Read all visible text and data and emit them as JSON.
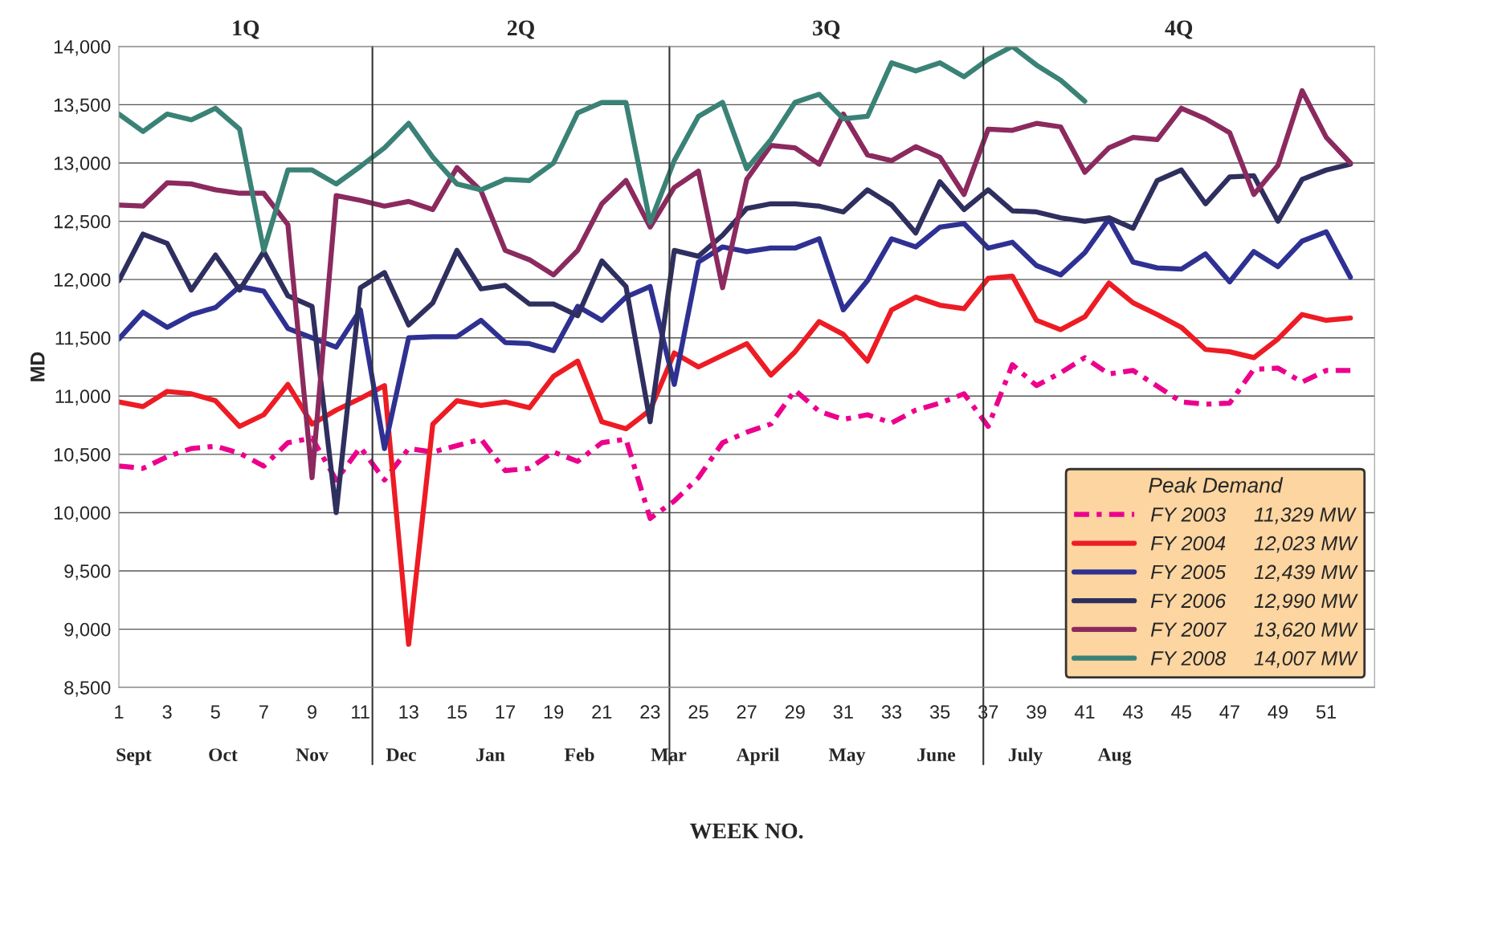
{
  "chart_data": {
    "type": "line",
    "ylabel": "MD",
    "xlabel": "WEEK NO.",
    "legend_title": "Peak Demand",
    "legend": "bottom right",
    "grid": "y",
    "marker": "none",
    "x": [
      1,
      2,
      3,
      4,
      5,
      6,
      7,
      8,
      9,
      10,
      11,
      12,
      13,
      14,
      15,
      16,
      17,
      18,
      19,
      20,
      21,
      22,
      23,
      24,
      25,
      26,
      27,
      28,
      29,
      30,
      31,
      32,
      33,
      34,
      35,
      36,
      37,
      38,
      39,
      40,
      41,
      42,
      43,
      44,
      45,
      46,
      47,
      48,
      49,
      50,
      51,
      52
    ],
    "xlim": [
      1,
      53
    ],
    "xticks": [
      1,
      3,
      5,
      7,
      9,
      11,
      13,
      15,
      17,
      19,
      21,
      23,
      25,
      27,
      29,
      31,
      33,
      35,
      37,
      39,
      41,
      43,
      45,
      47,
      49,
      51
    ],
    "ylim": [
      8500,
      14000
    ],
    "yticks": [
      {
        "value": 8500,
        "label": "8,500"
      },
      {
        "value": 9000,
        "label": "9,000"
      },
      {
        "value": 9500,
        "label": "9,500"
      },
      {
        "value": 10000,
        "label": "10,000"
      },
      {
        "value": 10500,
        "label": "10,500"
      },
      {
        "value": 11000,
        "label": "11,000"
      },
      {
        "value": 11500,
        "label": "11,500"
      },
      {
        "value": 12000,
        "label": "12,000"
      },
      {
        "value": 12500,
        "label": "12,500"
      },
      {
        "value": 13000,
        "label": "13,000"
      },
      {
        "value": 13500,
        "label": "13,500"
      },
      {
        "value": 14000,
        "label": "14,000"
      }
    ],
    "ref_lines": [
      {
        "axis": "x",
        "value": 11.5
      },
      {
        "axis": "x",
        "value": 23.8
      },
      {
        "axis": "x",
        "value": 36.8
      }
    ],
    "annotations": [
      "1Q",
      "2Q",
      "3Q",
      "4Q",
      "Sept",
      "Oct",
      "Nov",
      "Dec",
      "Jan",
      "Feb",
      "Mar",
      "April",
      "May",
      "June",
      "July",
      "Aug"
    ],
    "series": [
      {
        "name": "FY 2003     11,329 MW",
        "color": "#ec008c",
        "line_style": "dashed",
        "values": [
          10400,
          10380,
          10480,
          10550,
          10570,
          10510,
          10400,
          10600,
          10640,
          10280,
          10560,
          10280,
          10550,
          10520,
          null,
          10630,
          10360,
          10380,
          10520,
          10440,
          10600,
          10630,
          9950,
          10100,
          10300,
          10600,
          10690,
          10760,
          11050,
          10870,
          10800,
          10840,
          10770,
          10880,
          10940,
          11020,
          10740,
          11270,
          11090,
          11200,
          11330,
          11190,
          11220,
          null,
          10950,
          10930,
          10940,
          11230,
          11240,
          11120,
          11220,
          11220
        ]
      },
      {
        "name": "FY 2004     12,023 MW",
        "color": "#ed1c24",
        "line_style": "solid",
        "values": [
          10950,
          10910,
          11040,
          11020,
          10960,
          10740,
          10840,
          11100,
          10760,
          10880,
          10980,
          11090,
          8870,
          10760,
          10960,
          10920,
          10950,
          10900,
          11170,
          11300,
          10780,
          10720,
          10880,
          11370,
          11250,
          11350,
          11450,
          11180,
          11380,
          11640,
          11530,
          11300,
          11740,
          11850,
          11780,
          11750,
          12010,
          12030,
          11650,
          11570,
          11680,
          11970,
          11800,
          11700,
          11590,
          11400,
          11380,
          11330,
          11490,
          11700,
          11650,
          11670
        ]
      },
      {
        "name": "FY 2005     12,439 MW",
        "color": "#2e3192",
        "line_style": "solid",
        "values": [
          11490,
          11720,
          11590,
          11700,
          11760,
          11940,
          11900,
          11580,
          11500,
          11420,
          11740,
          10550,
          11500,
          11510,
          11510,
          11650,
          11460,
          11450,
          11390,
          11770,
          11650,
          11850,
          11940,
          11100,
          12150,
          12280,
          12240,
          12270,
          12270,
          12350,
          11740,
          11990,
          12350,
          12280,
          12450,
          12480,
          12270,
          12320,
          12120,
          12040,
          12230,
          12520,
          12150,
          12100,
          12090,
          12220,
          11980,
          12240,
          12110,
          12330,
          12410,
          12020
        ]
      },
      {
        "name": "FY 2006     12,990 MW",
        "color": "#2f2f5f",
        "line_style": "solid",
        "values": [
          11990,
          12390,
          12310,
          11910,
          12210,
          11910,
          12240,
          11860,
          11770,
          10000,
          11930,
          12060,
          11610,
          11800,
          12250,
          11920,
          11950,
          11790,
          11790,
          11690,
          12160,
          11940,
          10780,
          12250,
          12200,
          12380,
          12610,
          12650,
          12650,
          12630,
          12580,
          12770,
          12640,
          12400,
          12840,
          12600,
          12770,
          12590,
          12580,
          12530,
          12500,
          12530,
          12440,
          12850,
          12940,
          12650,
          12880,
          12890,
          12500,
          12860,
          12940,
          12990
        ]
      },
      {
        "name": "FY 2007     13,620 MW",
        "color": "#8b2a5e",
        "line_style": "solid",
        "values": [
          12640,
          12630,
          12830,
          12820,
          12770,
          12740,
          12740,
          12470,
          10300,
          12720,
          12680,
          12630,
          12670,
          12600,
          12960,
          12760,
          12250,
          12170,
          12040,
          12250,
          12650,
          12850,
          12450,
          12790,
          12930,
          11930,
          12860,
          13150,
          13130,
          12990,
          13420,
          13070,
          13020,
          13140,
          13050,
          12730,
          13290,
          13280,
          13340,
          13310,
          12920,
          13130,
          13220,
          13200,
          13470,
          13380,
          13260,
          12730,
          12980,
          13620,
          13220,
          13000
        ]
      },
      {
        "name": "FY 2008     14,007 MW",
        "color": "#3a8276",
        "line_style": "solid",
        "values": [
          13420,
          13270,
          13420,
          13370,
          13470,
          13290,
          12250,
          12940,
          12940,
          12820,
          12970,
          13130,
          13340,
          13050,
          12820,
          12770,
          12860,
          12850,
          13000,
          13430,
          13520,
          13520,
          12490,
          13020,
          13400,
          13520,
          12950,
          13200,
          13520,
          13590,
          13380,
          13400,
          13860,
          13790,
          13860,
          13740,
          13890,
          14000,
          13840,
          13710,
          13530,
          null,
          null,
          null,
          null,
          null,
          null,
          null,
          null,
          null,
          null,
          null
        ]
      }
    ]
  }
}
